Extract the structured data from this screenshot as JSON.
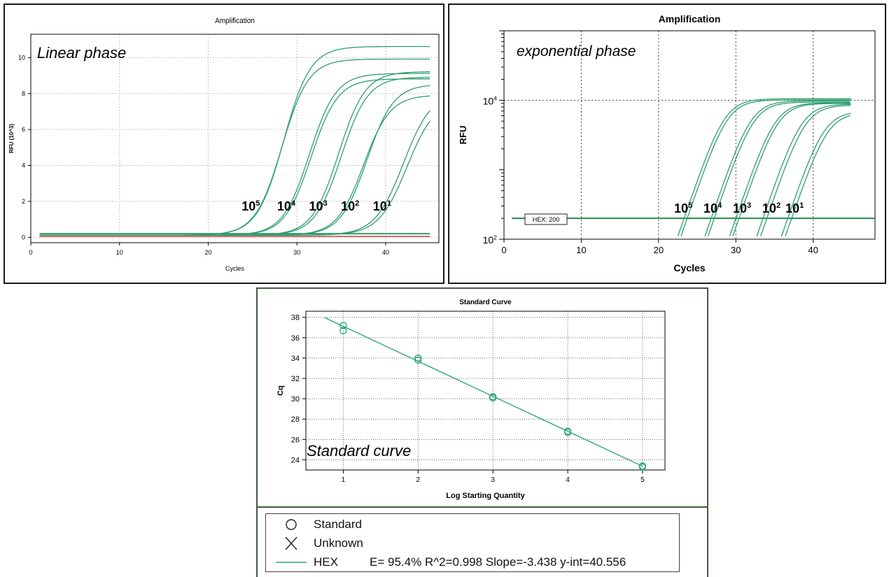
{
  "colors": {
    "curve": "#2e9e6e",
    "fit": "#2fa77a",
    "threshold_linear": "#2e9e6e",
    "threshold_exp": "#1f8a50",
    "baseline": "#d04030",
    "axis": "#000000",
    "grid": "#9a9a9a"
  },
  "chart_data": [
    {
      "type": "line",
      "title": "Amplification",
      "xlabel": "Cycles",
      "ylabel": "RFU (10^3)",
      "xlim": [
        0,
        46
      ],
      "ylim": [
        -0.3,
        11.3
      ],
      "xticks": [
        0,
        10,
        20,
        30,
        40
      ],
      "yticks": [
        0,
        2,
        4,
        6,
        8,
        10
      ],
      "grid": true,
      "annotation": "Linear phase",
      "dilution_labels": [
        {
          "base": "10",
          "exp": "5",
          "cycle": 24.8
        },
        {
          "base": "10",
          "exp": "4",
          "cycle": 28.8
        },
        {
          "base": "10",
          "exp": "3",
          "cycle": 32.4
        },
        {
          "base": "10",
          "exp": "2",
          "cycle": 36.0
        },
        {
          "base": "10",
          "exp": "1",
          "cycle": 39.6
        }
      ],
      "threshold": 0.2,
      "series": [
        {
          "cq": 28.5,
          "plateau": 10.5,
          "slope": 1.5
        },
        {
          "cq": 28.3,
          "plateau": 9.8,
          "slope": 1.5
        },
        {
          "cq": 31.4,
          "plateau": 9.0,
          "slope": 1.5
        },
        {
          "cq": 31.6,
          "plateau": 8.7,
          "slope": 1.5
        },
        {
          "cq": 34.7,
          "plateau": 9.1,
          "slope": 1.5
        },
        {
          "cq": 35.0,
          "plateau": 8.8,
          "slope": 1.5
        },
        {
          "cq": 37.5,
          "plateau": 7.8,
          "slope": 1.5
        },
        {
          "cq": 37.9,
          "plateau": 8.4,
          "slope": 1.5
        },
        {
          "cq": 42.0,
          "plateau": 8.0,
          "slope": 1.6
        },
        {
          "cq": 42.4,
          "plateau": 7.6,
          "slope": 1.6
        }
      ]
    },
    {
      "type": "line",
      "title": "Amplification",
      "xlabel": "Cycles",
      "ylabel": "RFU",
      "xscale": "log-y",
      "xlim": [
        0,
        48
      ],
      "ylim": [
        100,
        100000
      ],
      "xticks": [
        0,
        10,
        20,
        30,
        40
      ],
      "yticks": [
        {
          "base": "10",
          "exp": "2",
          "value": 100
        },
        {
          "base": "10",
          "exp": "4",
          "value": 10000
        }
      ],
      "grid": true,
      "annotation": "exponential phase",
      "threshold": 200,
      "threshold_label": "HEX: 200",
      "dilution_labels": [
        {
          "base": "10",
          "exp": "5",
          "cycle": 23.2
        },
        {
          "base": "10",
          "exp": "4",
          "cycle": 27.0
        },
        {
          "base": "10",
          "exp": "3",
          "cycle": 30.8
        },
        {
          "base": "10",
          "exp": "2",
          "cycle": 34.6
        },
        {
          "base": "10",
          "exp": "1",
          "cycle": 37.6
        }
      ],
      "series": [
        {
          "cq": 23.3,
          "plateau": 10500
        },
        {
          "cq": 23.7,
          "plateau": 10100
        },
        {
          "cq": 26.8,
          "plateau": 9800
        },
        {
          "cq": 27.2,
          "plateau": 9400
        },
        {
          "cq": 30.0,
          "plateau": 9200
        },
        {
          "cq": 30.4,
          "plateau": 9000
        },
        {
          "cq": 33.5,
          "plateau": 8800
        },
        {
          "cq": 34.0,
          "plateau": 8500
        },
        {
          "cq": 36.7,
          "plateau": 6900
        },
        {
          "cq": 37.2,
          "plateau": 6600
        }
      ]
    },
    {
      "type": "scatter",
      "title": "Standard Curve",
      "xlabel": "Log Starting Quantity",
      "ylabel": "Cq",
      "xlim": [
        0.5,
        5.3
      ],
      "ylim": [
        23,
        38.6
      ],
      "xticks": [
        1,
        2,
        3,
        4,
        5
      ],
      "yticks": [
        24,
        26,
        28,
        30,
        32,
        34,
        36,
        38
      ],
      "grid": true,
      "annotation": "Standard curve",
      "points": [
        {
          "x": 1,
          "y": 37.2
        },
        {
          "x": 1,
          "y": 36.7
        },
        {
          "x": 2,
          "y": 34.0
        },
        {
          "x": 2,
          "y": 33.8
        },
        {
          "x": 3,
          "y": 30.2
        },
        {
          "x": 3,
          "y": 30.1
        },
        {
          "x": 4,
          "y": 26.8
        },
        {
          "x": 4,
          "y": 26.7
        },
        {
          "x": 5,
          "y": 23.4
        },
        {
          "x": 5,
          "y": 23.3
        }
      ],
      "fit": {
        "slope": -3.438,
        "intercept": 40.556,
        "x_from": 0.75,
        "x_to": 5.0
      }
    }
  ],
  "legend": {
    "standard_label": "Standard",
    "unknown_label": "Unknown",
    "hex_label": "HEX",
    "equation": "E= 95.4% R^2=0.998 Slope=-3.438 y-int=40.556"
  }
}
